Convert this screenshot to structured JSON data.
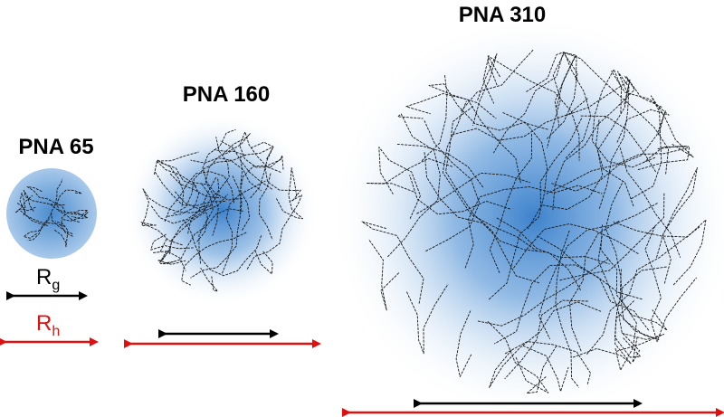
{
  "polymers": [
    {
      "label": "PNA 65"
    },
    {
      "label": "PNA 160"
    },
    {
      "label": "PNA 310"
    }
  ],
  "legend": {
    "rg": {
      "symbol": "R",
      "subscript": "g"
    },
    "rh": {
      "symbol": "R",
      "subscript": "h"
    }
  }
}
